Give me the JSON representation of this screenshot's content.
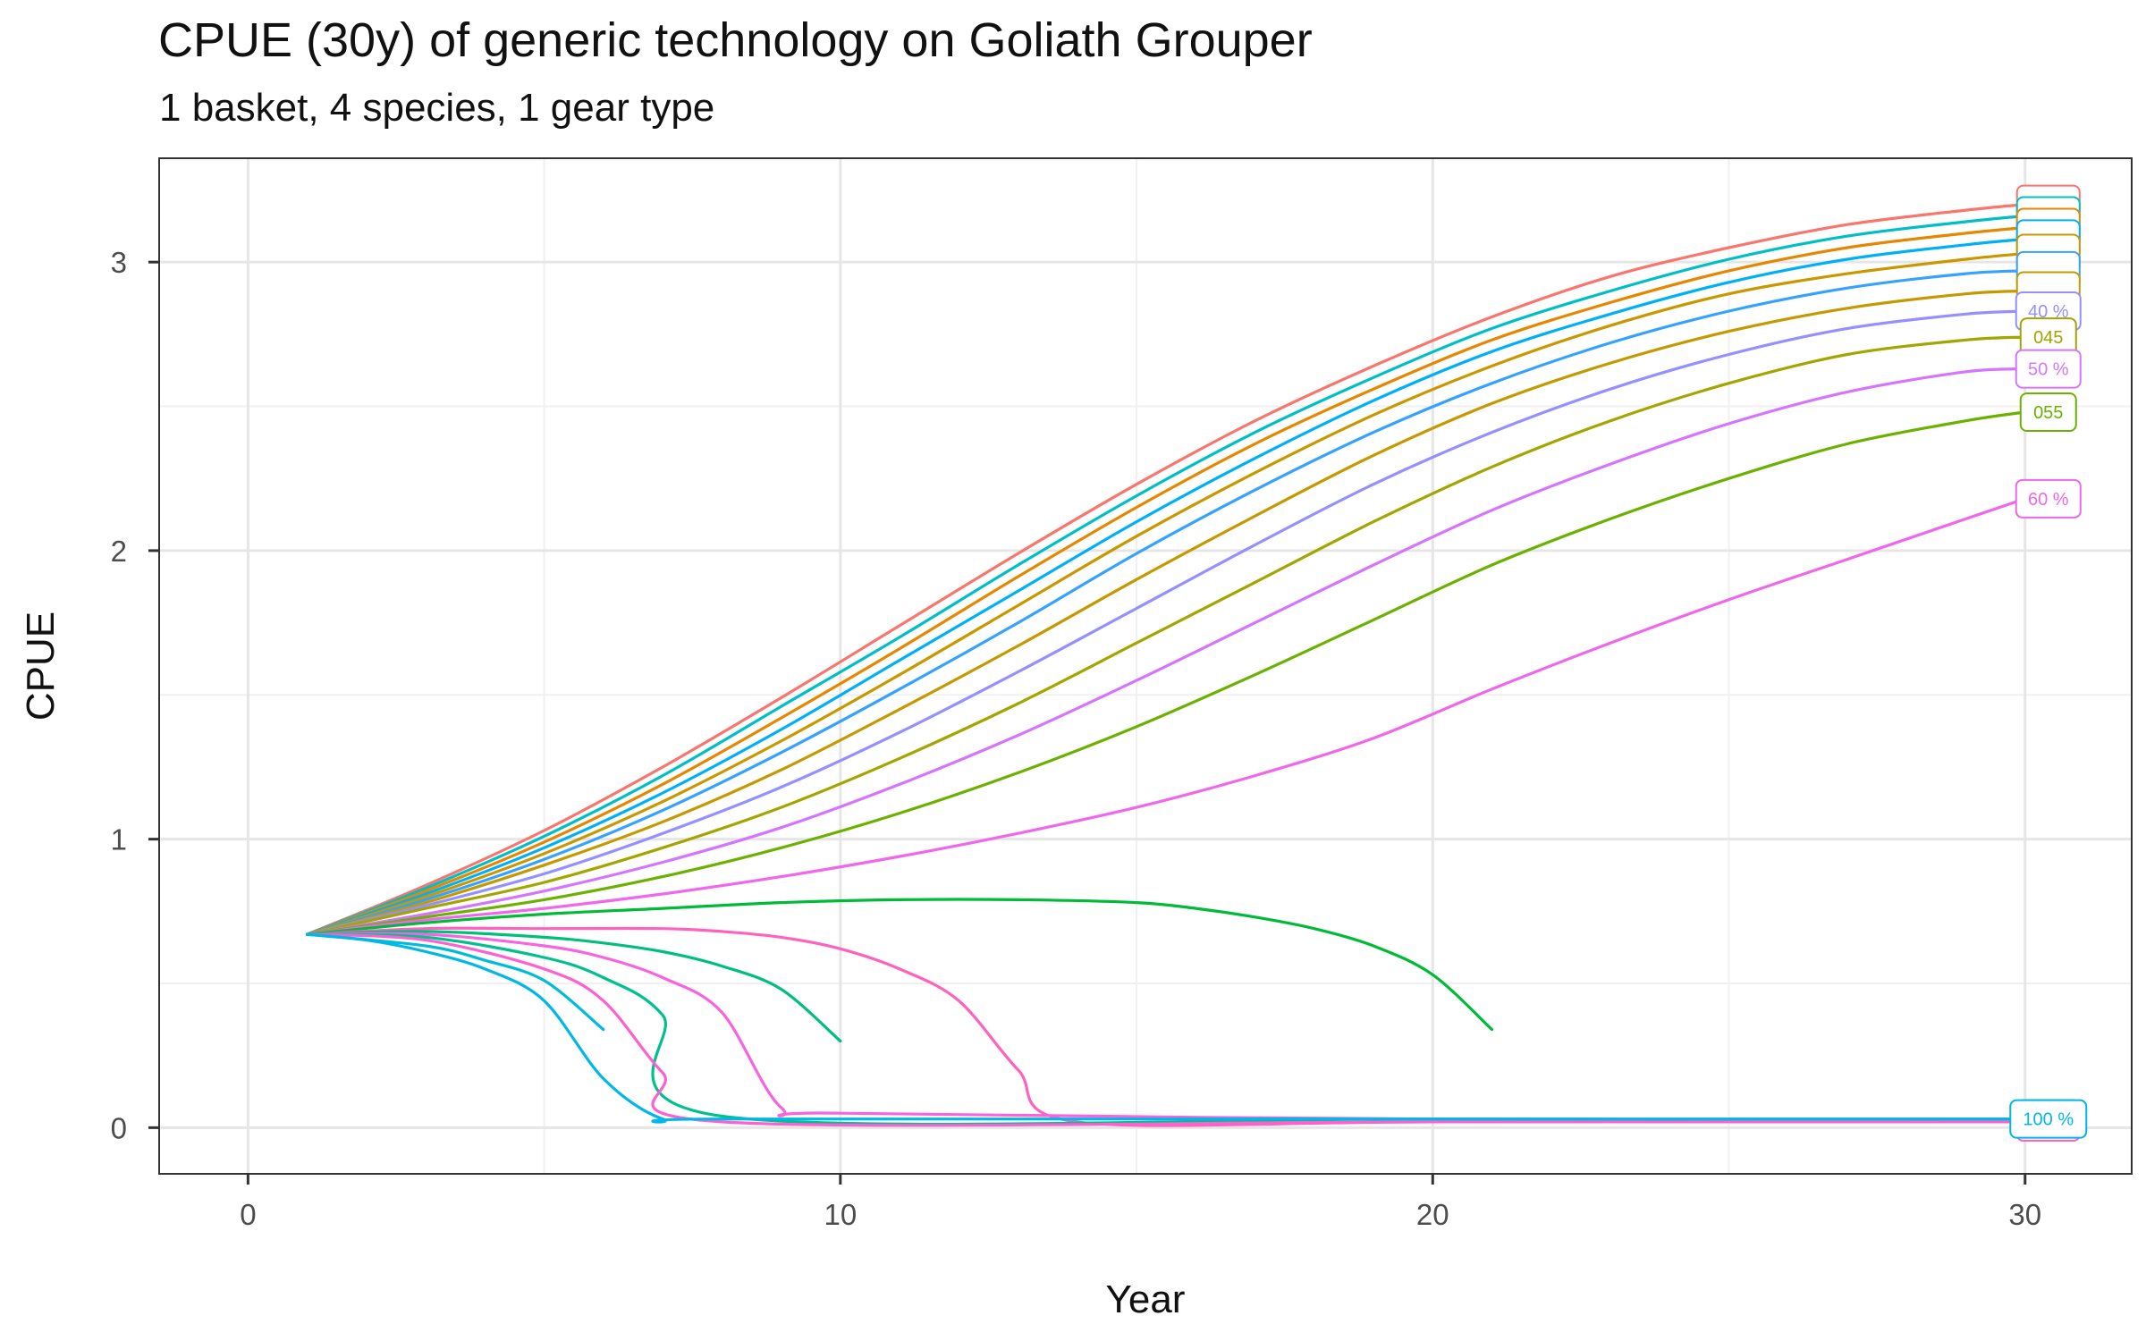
{
  "chart_data": {
    "type": "line",
    "title": "CPUE (30y) of generic technology on Goliath Grouper",
    "subtitle": "1 basket, 4 species, 1 gear type",
    "xlabel": "Year",
    "ylabel": "CPUE",
    "xlim": [
      -1.5,
      31.8
    ],
    "ylim": [
      -0.16,
      3.36
    ],
    "x_ticks": [
      0,
      10,
      20,
      30
    ],
    "y_ticks": [
      0,
      1,
      2,
      3
    ],
    "x_tick_labels": [
      "0",
      "10",
      "20",
      "30"
    ],
    "y_tick_labels": [
      "0",
      "1",
      "2",
      "3"
    ],
    "grid": true,
    "legend": "none (direct end-of-line labels)",
    "series": [
      {
        "color": "#F8766D",
        "label": "",
        "x": [
          1,
          3,
          5,
          7,
          9,
          11,
          13,
          15,
          17,
          19,
          21,
          23,
          25,
          27,
          29,
          30
        ],
        "values": [
          0.67,
          0.84,
          1.03,
          1.25,
          1.49,
          1.74,
          1.99,
          2.23,
          2.45,
          2.64,
          2.81,
          2.95,
          3.05,
          3.13,
          3.18,
          3.2
        ]
      },
      {
        "color": "#00BFC4",
        "label": "",
        "x": [
          1,
          3,
          5,
          7,
          9,
          11,
          13,
          15,
          17,
          19,
          21,
          23,
          25,
          27,
          29,
          30
        ],
        "values": [
          0.67,
          0.83,
          1.01,
          1.22,
          1.46,
          1.7,
          1.95,
          2.19,
          2.41,
          2.6,
          2.77,
          2.9,
          3.01,
          3.09,
          3.14,
          3.16
        ]
      },
      {
        "color": "#E58700",
        "label": "",
        "x": [
          1,
          3,
          5,
          7,
          9,
          11,
          13,
          15,
          17,
          19,
          21,
          23,
          25,
          27,
          29,
          30
        ],
        "values": [
          0.67,
          0.82,
          0.99,
          1.19,
          1.42,
          1.66,
          1.91,
          2.15,
          2.37,
          2.56,
          2.73,
          2.86,
          2.97,
          3.05,
          3.1,
          3.12
        ]
      },
      {
        "color": "#00B0F6",
        "label": "",
        "x": [
          1,
          3,
          5,
          7,
          9,
          11,
          13,
          15,
          17,
          19,
          21,
          23,
          25,
          27,
          29,
          30
        ],
        "values": [
          0.67,
          0.81,
          0.97,
          1.16,
          1.38,
          1.62,
          1.86,
          2.1,
          2.32,
          2.52,
          2.69,
          2.82,
          2.93,
          3.01,
          3.06,
          3.08
        ]
      },
      {
        "color": "#C99800",
        "label": "",
        "x": [
          1,
          3,
          5,
          7,
          9,
          11,
          13,
          15,
          17,
          19,
          21,
          23,
          25,
          27,
          29,
          30
        ],
        "values": [
          0.67,
          0.8,
          0.95,
          1.13,
          1.34,
          1.57,
          1.81,
          2.05,
          2.27,
          2.47,
          2.64,
          2.78,
          2.89,
          2.96,
          3.01,
          3.03
        ]
      },
      {
        "color": "#35A2FF",
        "label": "",
        "x": [
          1,
          3,
          5,
          7,
          9,
          11,
          13,
          15,
          17,
          19,
          21,
          23,
          25,
          27,
          29,
          30
        ],
        "values": [
          0.67,
          0.79,
          0.93,
          1.1,
          1.3,
          1.52,
          1.75,
          1.99,
          2.21,
          2.41,
          2.58,
          2.72,
          2.83,
          2.91,
          2.96,
          2.97
        ]
      },
      {
        "color": "#C49A00",
        "label": "",
        "x": [
          1,
          3,
          5,
          7,
          9,
          11,
          13,
          15,
          17,
          19,
          21,
          23,
          25,
          27,
          29,
          30
        ],
        "values": [
          0.67,
          0.78,
          0.91,
          1.06,
          1.24,
          1.45,
          1.67,
          1.9,
          2.12,
          2.33,
          2.51,
          2.65,
          2.76,
          2.84,
          2.89,
          2.9
        ]
      },
      {
        "color": "#9590FF",
        "label": "40 %",
        "x": [
          1,
          3,
          5,
          7,
          9,
          11,
          13,
          15,
          17,
          19,
          21,
          23,
          25,
          27,
          29,
          30
        ],
        "values": [
          0.67,
          0.77,
          0.88,
          1.02,
          1.18,
          1.37,
          1.58,
          1.8,
          2.02,
          2.23,
          2.41,
          2.56,
          2.68,
          2.77,
          2.82,
          2.83
        ]
      },
      {
        "color": "#A3A500",
        "label": "045",
        "x": [
          1,
          3,
          5,
          7,
          9,
          11,
          13,
          15,
          17,
          19,
          21,
          23,
          25,
          27,
          29,
          30
        ],
        "values": [
          0.67,
          0.76,
          0.85,
          0.97,
          1.11,
          1.28,
          1.47,
          1.68,
          1.89,
          2.1,
          2.29,
          2.45,
          2.58,
          2.68,
          2.73,
          2.74
        ]
      },
      {
        "color": "#D575FE",
        "label": "50 %",
        "x": [
          1,
          3,
          5,
          7,
          9,
          11,
          13,
          15,
          17,
          19,
          21,
          23,
          25,
          27,
          29,
          30
        ],
        "values": [
          0.67,
          0.74,
          0.82,
          0.92,
          1.04,
          1.19,
          1.36,
          1.55,
          1.75,
          1.95,
          2.14,
          2.3,
          2.44,
          2.55,
          2.62,
          2.63
        ]
      },
      {
        "color": "#6BB100",
        "label": "055",
        "x": [
          1,
          3,
          5,
          7,
          9,
          11,
          13,
          15,
          17,
          19,
          21,
          23,
          25,
          27,
          29,
          30
        ],
        "values": [
          0.67,
          0.73,
          0.79,
          0.87,
          0.97,
          1.09,
          1.23,
          1.39,
          1.57,
          1.76,
          1.95,
          2.11,
          2.25,
          2.37,
          2.45,
          2.48
        ]
      },
      {
        "color": "#EF67EB",
        "label": "60 %",
        "x": [
          1,
          3,
          5,
          7,
          9,
          11,
          13,
          15,
          17,
          19,
          21,
          23,
          25,
          27,
          29,
          30
        ],
        "values": [
          0.67,
          0.72,
          0.76,
          0.81,
          0.87,
          0.94,
          1.02,
          1.11,
          1.22,
          1.35,
          1.52,
          1.68,
          1.83,
          1.97,
          2.11,
          2.18
        ]
      },
      {
        "color": "#00BA38",
        "label": "",
        "x": [
          1,
          3,
          5,
          7,
          9,
          11,
          13,
          15,
          16,
          17,
          18,
          19,
          20,
          21
        ],
        "values": [
          0.67,
          0.71,
          0.74,
          0.76,
          0.78,
          0.79,
          0.79,
          0.78,
          0.76,
          0.73,
          0.69,
          0.63,
          0.53,
          0.34
        ]
      },
      {
        "color": "#FF62BC",
        "label": "",
        "x": [
          1,
          3,
          5,
          7,
          8,
          9,
          10,
          11,
          12,
          13,
          14,
          20,
          30
        ],
        "values": [
          0.67,
          0.69,
          0.69,
          0.69,
          0.68,
          0.66,
          0.62,
          0.55,
          0.44,
          0.2,
          0.02,
          0.02,
          0.02
        ]
      },
      {
        "color": "#00BF7D",
        "label": "",
        "x": [
          1,
          3,
          5,
          6,
          7,
          8,
          9,
          10
        ],
        "values": [
          0.67,
          0.68,
          0.66,
          0.64,
          0.61,
          0.56,
          0.48,
          0.3
        ]
      },
      {
        "color": "#F763E0",
        "label": "",
        "x": [
          1,
          3,
          5,
          6,
          7,
          8,
          9,
          10,
          20,
          30
        ],
        "values": [
          0.67,
          0.67,
          0.63,
          0.59,
          0.52,
          0.4,
          0.07,
          0.05,
          0.03,
          0.03
        ]
      },
      {
        "color": "#00C08B",
        "label": "",
        "x": [
          1,
          3,
          5,
          6,
          7,
          8,
          20,
          30
        ],
        "values": [
          0.67,
          0.66,
          0.59,
          0.52,
          0.39,
          0.04,
          0.03,
          0.03
        ]
      },
      {
        "color": "#FD61D1",
        "label": "",
        "x": [
          1,
          3,
          5,
          6,
          7,
          8,
          20,
          30
        ],
        "values": [
          0.67,
          0.65,
          0.55,
          0.44,
          0.19,
          0.02,
          0.02,
          0.02
        ]
      },
      {
        "color": "#00BCD8",
        "label": "",
        "x": [
          1,
          3,
          4,
          5,
          6
        ],
        "values": [
          0.67,
          0.63,
          0.58,
          0.51,
          0.34
        ]
      },
      {
        "color": "#00B8E7",
        "label": "100 %",
        "x": [
          1,
          2,
          3,
          4,
          5,
          6,
          7,
          8,
          20,
          30
        ],
        "values": [
          0.67,
          0.65,
          0.61,
          0.55,
          0.44,
          0.17,
          0.03,
          0.03,
          0.03,
          0.03
        ]
      }
    ]
  }
}
